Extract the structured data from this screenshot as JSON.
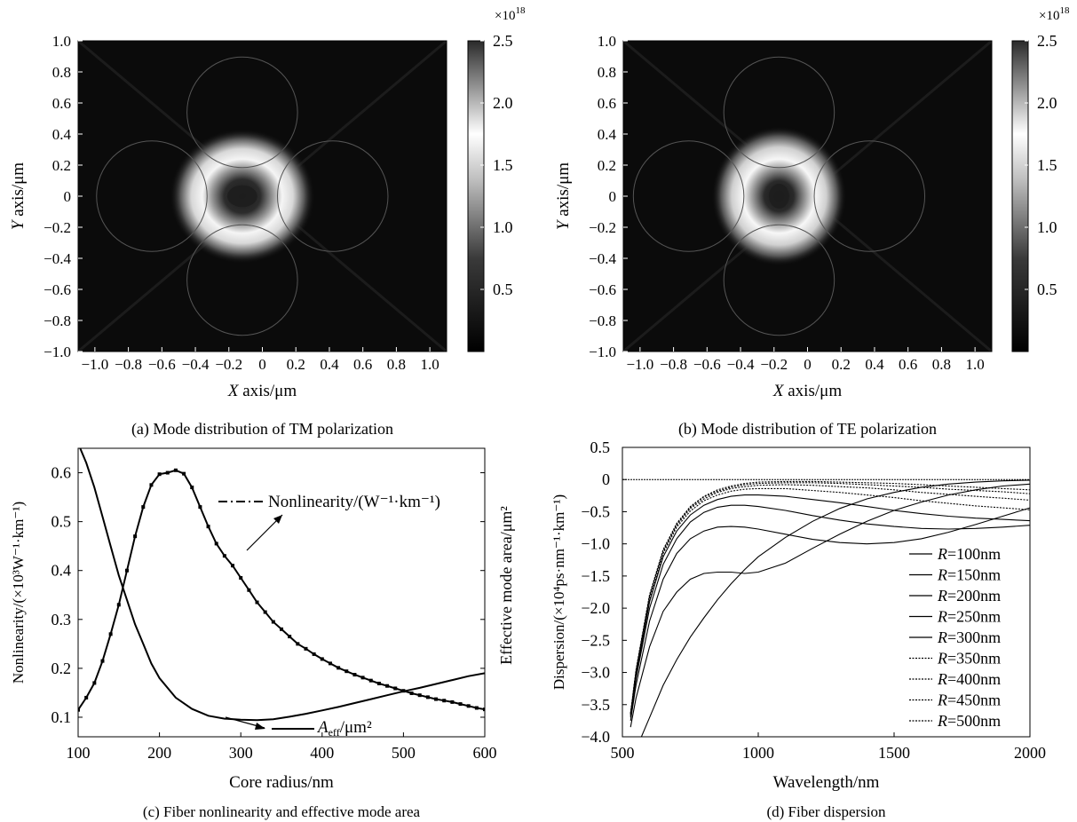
{
  "chart_data": [
    {
      "id": "a",
      "type": "heatmap",
      "caption": "(a) Mode distribution of TM polarization",
      "xlabel_italic": "X",
      "xlabel": " axis/μm",
      "ylabel_italic": "Y",
      "ylabel": " axis/μm",
      "xlim": [
        -1.1,
        1.1
      ],
      "ylim": [
        -1.0,
        1.0
      ],
      "xticks": [
        "−1.0",
        "−0.8",
        "−0.6",
        "−0.4",
        "−0.2",
        "0",
        "0.2",
        "0.4",
        "0.6",
        "0.8",
        "1.0"
      ],
      "xtick_values": [
        -1.0,
        -0.8,
        -0.6,
        -0.4,
        -0.2,
        0,
        0.2,
        0.4,
        0.6,
        0.8,
        1.0
      ],
      "yticks": [
        "1.0",
        "0.8",
        "0.6",
        "0.4",
        "0.2",
        "0",
        "−0.2",
        "−0.4",
        "−0.6",
        "−0.8",
        "−1.0"
      ],
      "ytick_values": [
        1.0,
        0.8,
        0.6,
        0.4,
        0.2,
        0,
        -0.2,
        -0.4,
        -0.6,
        -0.8,
        -1.0
      ],
      "colorbar": {
        "range": [
          0,
          2.5
        ],
        "ticks": [
          "2.5",
          "2.0",
          "1.5",
          "1.0",
          "0.5"
        ],
        "tick_values": [
          2.5,
          2.0,
          1.5,
          1.0,
          0.5
        ],
        "scale_label": "×10",
        "scale_exp": "18"
      },
      "mode": {
        "center_x": -0.12,
        "center_y": 0.0,
        "inner_rx": 0.09,
        "inner_ry": 0.07,
        "outer_rx": 0.28,
        "outer_ry": 0.28,
        "peak": 2.2
      },
      "core_arcs": {
        "center_offset": 0.54,
        "radius": 0.33,
        "center_x": -0.12
      }
    },
    {
      "id": "b",
      "type": "heatmap",
      "caption": "(b) Mode distribution of TE polarization",
      "xlabel_italic": "X",
      "xlabel": " axis/μm",
      "ylabel_italic": "Y",
      "ylabel": " axis/μm",
      "xlim": [
        -1.1,
        1.1
      ],
      "ylim": [
        -1.0,
        1.0
      ],
      "xticks": [
        "−1.0",
        "−0.8",
        "−0.6",
        "−0.4",
        "−0.2",
        "0",
        "0.2",
        "0.4",
        "0.6",
        "0.8",
        "1.0"
      ],
      "xtick_values": [
        -1.0,
        -0.8,
        -0.6,
        -0.4,
        -0.2,
        0,
        0.2,
        0.4,
        0.6,
        0.8,
        1.0
      ],
      "yticks": [
        "1.0",
        "0.8",
        "0.6",
        "0.4",
        "0.2",
        "0",
        "−0.2",
        "−0.4",
        "−0.6",
        "−0.8",
        "−1.0"
      ],
      "ytick_values": [
        1.0,
        0.8,
        0.6,
        0.4,
        0.2,
        0,
        -0.2,
        -0.4,
        -0.6,
        -0.8,
        -1.0
      ],
      "colorbar": {
        "range": [
          0,
          2.5
        ],
        "ticks": [
          "2.5",
          "2.0",
          "1.5",
          "1.0",
          "0.5"
        ],
        "tick_values": [
          2.5,
          2.0,
          1.5,
          1.0,
          0.5
        ],
        "scale_label": "×10",
        "scale_exp": "18"
      },
      "mode": {
        "center_x": -0.17,
        "center_y": 0.0,
        "inner_rx": 0.06,
        "inner_ry": 0.08,
        "outer_rx": 0.26,
        "outer_ry": 0.29,
        "peak": 2.2
      },
      "core_arcs": {
        "center_offset": 0.54,
        "radius": 0.33,
        "center_x": -0.17
      }
    },
    {
      "id": "c",
      "type": "line",
      "caption": "(c) Fiber nonlinearity and effective mode area",
      "xlabel": "Core radius/nm",
      "ylabel": "Nonlinearity/(×10³W⁻¹·km⁻¹)",
      "ylabel_right": "Effective mode area/μm²",
      "xlim": [
        100,
        600
      ],
      "ylim": [
        0.06,
        0.65
      ],
      "xticks": [
        "100",
        "200",
        "300",
        "400",
        "500",
        "600"
      ],
      "xtick_values": [
        100,
        200,
        300,
        400,
        500,
        600
      ],
      "yticks": [
        "0.6",
        "0.5",
        "0.4",
        "0.3",
        "0.2",
        "0.1"
      ],
      "ytick_values": [
        0.6,
        0.5,
        0.4,
        0.3,
        0.2,
        0.1
      ],
      "series": [
        {
          "name": "Nonlinearity/(W⁻¹·km⁻¹)",
          "style": "dash-dot-markers",
          "x": [
            100,
            110,
            120,
            130,
            140,
            150,
            160,
            170,
            180,
            190,
            200,
            210,
            220,
            230,
            240,
            250,
            260,
            270,
            280,
            290,
            300,
            310,
            320,
            330,
            340,
            350,
            360,
            370,
            380,
            390,
            400,
            410,
            420,
            430,
            440,
            450,
            460,
            470,
            480,
            490,
            500,
            510,
            520,
            530,
            540,
            550,
            560,
            570,
            580,
            590,
            600
          ],
          "y": [
            0.115,
            0.14,
            0.17,
            0.215,
            0.27,
            0.33,
            0.4,
            0.47,
            0.53,
            0.575,
            0.597,
            0.6,
            0.605,
            0.598,
            0.57,
            0.53,
            0.49,
            0.455,
            0.43,
            0.41,
            0.385,
            0.36,
            0.335,
            0.315,
            0.295,
            0.28,
            0.265,
            0.25,
            0.24,
            0.229,
            0.219,
            0.21,
            0.201,
            0.194,
            0.187,
            0.181,
            0.175,
            0.169,
            0.164,
            0.159,
            0.154,
            0.149,
            0.145,
            0.141,
            0.137,
            0.134,
            0.131,
            0.127,
            0.123,
            0.119,
            0.116
          ]
        },
        {
          "name": "A",
          "name_sub": "eff",
          "name_suffix": "/μm²",
          "style": "solid",
          "x": [
            100,
            110,
            120,
            130,
            140,
            150,
            160,
            170,
            180,
            190,
            200,
            220,
            240,
            260,
            280,
            300,
            320,
            340,
            360,
            380,
            400,
            420,
            440,
            460,
            480,
            500,
            520,
            540,
            560,
            580,
            600
          ],
          "y": [
            0.66,
            0.62,
            0.57,
            0.51,
            0.45,
            0.39,
            0.34,
            0.29,
            0.25,
            0.21,
            0.18,
            0.14,
            0.117,
            0.103,
            0.097,
            0.095,
            0.094,
            0.096,
            0.101,
            0.107,
            0.114,
            0.121,
            0.129,
            0.137,
            0.145,
            0.153,
            0.16,
            0.168,
            0.176,
            0.184,
            0.19
          ]
        }
      ]
    },
    {
      "id": "d",
      "type": "line",
      "caption": "(d) Fiber dispersion",
      "xlabel": "Wavelength/nm",
      "ylabel": "Dispersion/(×10⁴ps·nm⁻¹·km⁻¹)",
      "xlim": [
        500,
        2000
      ],
      "ylim": [
        -4.0,
        0.5
      ],
      "xticks": [
        "500",
        "1000",
        "1500",
        "2000"
      ],
      "xtick_values": [
        500,
        1000,
        1500,
        2000
      ],
      "yticks": [
        "0.5",
        "0",
        "−0.5",
        "−1.0",
        "−1.5",
        "−2.0",
        "−2.5",
        "−3.0",
        "−3.5",
        "−4.0"
      ],
      "ytick_values": [
        0.5,
        0,
        -0.5,
        -1.0,
        -1.5,
        -2.0,
        -2.5,
        -3.0,
        -3.5,
        -4.0
      ],
      "legend_position": "bottom-right",
      "series": [
        {
          "name": "=100nm",
          "name_italic": "R",
          "style": "solid",
          "x": [
            570,
            600,
            650,
            700,
            750,
            800,
            850,
            900,
            950,
            1000,
            1100,
            1200,
            1300,
            1400,
            1500,
            1600,
            1700,
            1800,
            1900,
            2000
          ],
          "y": [
            -4.0,
            -3.7,
            -3.2,
            -2.8,
            -2.45,
            -2.15,
            -1.87,
            -1.62,
            -1.4,
            -1.2,
            -0.9,
            -0.65,
            -0.45,
            -0.3,
            -0.2,
            -0.12,
            -0.07,
            -0.04,
            -0.02,
            -0.01
          ]
        },
        {
          "name": "=150nm",
          "name_italic": "R",
          "style": "solid",
          "x": [
            530,
            550,
            600,
            650,
            700,
            750,
            800,
            850,
            900,
            950,
            1000,
            1100,
            1200,
            1300,
            1400,
            1500,
            1600,
            1700,
            1800,
            1900,
            2000
          ],
          "y": [
            -3.85,
            -3.4,
            -2.6,
            -2.05,
            -1.75,
            -1.55,
            -1.46,
            -1.44,
            -1.44,
            -1.46,
            -1.44,
            -1.3,
            -1.07,
            -0.85,
            -0.65,
            -0.48,
            -0.35,
            -0.24,
            -0.16,
            -0.1,
            -0.07
          ]
        },
        {
          "name": "=200nm",
          "name_italic": "R",
          "style": "solid",
          "x": [
            530,
            550,
            600,
            650,
            700,
            750,
            800,
            850,
            900,
            950,
            1000,
            1100,
            1200,
            1300,
            1400,
            1500,
            1600,
            1700,
            1800,
            1900,
            2000
          ],
          "y": [
            -3.75,
            -3.2,
            -2.2,
            -1.55,
            -1.15,
            -0.92,
            -0.8,
            -0.74,
            -0.73,
            -0.74,
            -0.77,
            -0.85,
            -0.93,
            -0.98,
            -1.0,
            -0.98,
            -0.92,
            -0.82,
            -0.7,
            -0.57,
            -0.44
          ]
        },
        {
          "name": "=250nm",
          "name_italic": "R",
          "style": "solid",
          "x": [
            530,
            550,
            600,
            650,
            700,
            750,
            800,
            850,
            900,
            950,
            1000,
            1100,
            1200,
            1300,
            1400,
            1500,
            1600,
            1700,
            1800,
            1900,
            2000
          ],
          "y": [
            -3.7,
            -3.1,
            -2.0,
            -1.32,
            -0.92,
            -0.66,
            -0.51,
            -0.43,
            -0.4,
            -0.4,
            -0.42,
            -0.48,
            -0.56,
            -0.63,
            -0.69,
            -0.73,
            -0.76,
            -0.77,
            -0.76,
            -0.74,
            -0.71
          ]
        },
        {
          "name": "=300nm",
          "name_italic": "R",
          "style": "solid",
          "x": [
            530,
            550,
            600,
            650,
            700,
            750,
            800,
            850,
            900,
            950,
            1000,
            1100,
            1200,
            1300,
            1400,
            1500,
            1600,
            1700,
            1800,
            1900,
            2000
          ],
          "y": [
            -3.68,
            -3.05,
            -1.9,
            -1.2,
            -0.8,
            -0.55,
            -0.4,
            -0.31,
            -0.26,
            -0.24,
            -0.24,
            -0.26,
            -0.31,
            -0.36,
            -0.42,
            -0.48,
            -0.53,
            -0.57,
            -0.6,
            -0.62,
            -0.64
          ]
        },
        {
          "name": "=350nm",
          "name_italic": "R",
          "style": "dotted",
          "x": [
            530,
            550,
            600,
            650,
            700,
            750,
            800,
            850,
            900,
            950,
            1000,
            1100,
            1200,
            1300,
            1400,
            1500,
            1600,
            1700,
            1800,
            1900,
            2000
          ],
          "y": [
            -3.66,
            -3.0,
            -1.85,
            -1.15,
            -0.74,
            -0.49,
            -0.33,
            -0.24,
            -0.18,
            -0.15,
            -0.14,
            -0.14,
            -0.17,
            -0.2,
            -0.24,
            -0.28,
            -0.33,
            -0.37,
            -0.41,
            -0.44,
            -0.47
          ]
        },
        {
          "name": "=400nm",
          "name_italic": "R",
          "style": "dotted",
          "x": [
            530,
            550,
            600,
            650,
            700,
            750,
            800,
            850,
            900,
            950,
            1000,
            1100,
            1200,
            1300,
            1400,
            1500,
            1600,
            1700,
            1800,
            1900,
            2000
          ],
          "y": [
            -3.65,
            -2.98,
            -1.82,
            -1.12,
            -0.71,
            -0.45,
            -0.3,
            -0.2,
            -0.14,
            -0.11,
            -0.09,
            -0.08,
            -0.09,
            -0.11,
            -0.13,
            -0.16,
            -0.2,
            -0.23,
            -0.26,
            -0.29,
            -0.32
          ]
        },
        {
          "name": "=450nm",
          "name_italic": "R",
          "style": "dotted",
          "x": [
            530,
            550,
            600,
            650,
            700,
            750,
            800,
            850,
            900,
            950,
            1000,
            1100,
            1200,
            1300,
            1400,
            1500,
            1600,
            1700,
            1800,
            1900,
            2000
          ],
          "y": [
            -3.64,
            -2.97,
            -1.8,
            -1.1,
            -0.69,
            -0.43,
            -0.27,
            -0.18,
            -0.12,
            -0.08,
            -0.06,
            -0.05,
            -0.05,
            -0.06,
            -0.08,
            -0.1,
            -0.12,
            -0.15,
            -0.17,
            -0.19,
            -0.22
          ]
        },
        {
          "name": "=500nm",
          "name_italic": "R",
          "style": "dotted",
          "x": [
            530,
            550,
            600,
            650,
            700,
            750,
            800,
            850,
            900,
            950,
            1000,
            1100,
            1200,
            1300,
            1400,
            1500,
            1600,
            1700,
            1800,
            1900,
            2000
          ],
          "y": [
            -3.63,
            -2.96,
            -1.79,
            -1.09,
            -0.68,
            -0.42,
            -0.26,
            -0.16,
            -0.1,
            -0.06,
            -0.04,
            -0.03,
            -0.03,
            -0.04,
            -0.05,
            -0.06,
            -0.08,
            -0.1,
            -0.12,
            -0.14,
            -0.16
          ]
        }
      ],
      "reference_line": {
        "y": 0,
        "style": "dotted"
      }
    }
  ]
}
